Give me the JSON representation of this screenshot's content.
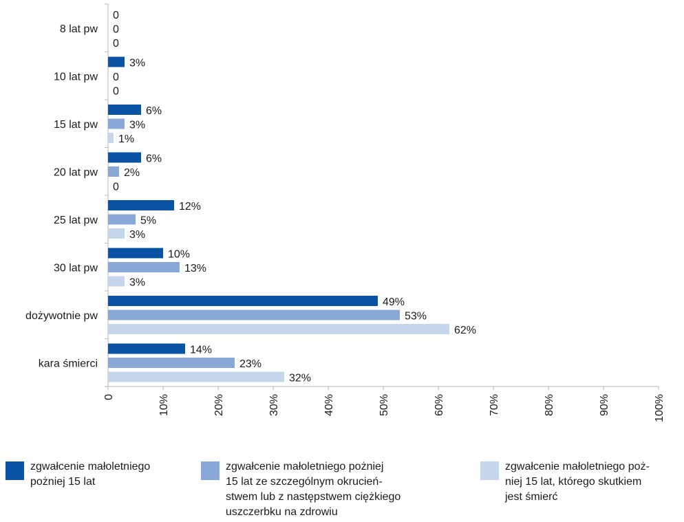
{
  "chart_data": {
    "type": "bar",
    "orientation": "horizontal",
    "categories": [
      "8 lat pw",
      "10 lat pw",
      "15 lat pw",
      "20 lat pw",
      "25 lat pw",
      "30 lat pw",
      "dożywotnie pw",
      "kara śmierci"
    ],
    "series": [
      {
        "name": "zgwałcenie małoletniego\npożniej 15 lat",
        "color": "#0b52a5",
        "values": [
          0,
          3,
          6,
          6,
          12,
          10,
          49,
          14
        ],
        "labels": [
          "0",
          "3%",
          "6%",
          "6%",
          "12%",
          "10%",
          "49%",
          "14%"
        ]
      },
      {
        "name": "zgwałcenie małoletniego pożniej\n15 lat ze szczególnym okrucień-\nstwem lub z następstwem ciężkiego\nuszczerbku na zdrowiu",
        "color": "#88a9d6",
        "values": [
          0,
          0,
          3,
          2,
          5,
          13,
          53,
          23
        ],
        "labels": [
          "0",
          "0",
          "3%",
          "2%",
          "5%",
          "13%",
          "53%",
          "23%"
        ]
      },
      {
        "name": "zgwałcenie małoletniego poż-\nniej 15 lat, którego skutkiem\njest śmierć",
        "color": "#c5d6ec",
        "values": [
          0,
          0,
          1,
          0,
          3,
          3,
          62,
          32
        ],
        "labels": [
          "0",
          "0",
          "1%",
          "0",
          "3%",
          "3%",
          "62%",
          "32%"
        ]
      }
    ],
    "x_ticks": [
      "0",
      "10%",
      "20%",
      "30%",
      "40%",
      "50%",
      "60%",
      "70%",
      "80%",
      "90%",
      "100%"
    ],
    "xlim": [
      0,
      100
    ],
    "grid": false,
    "legend_position": "bottom"
  }
}
